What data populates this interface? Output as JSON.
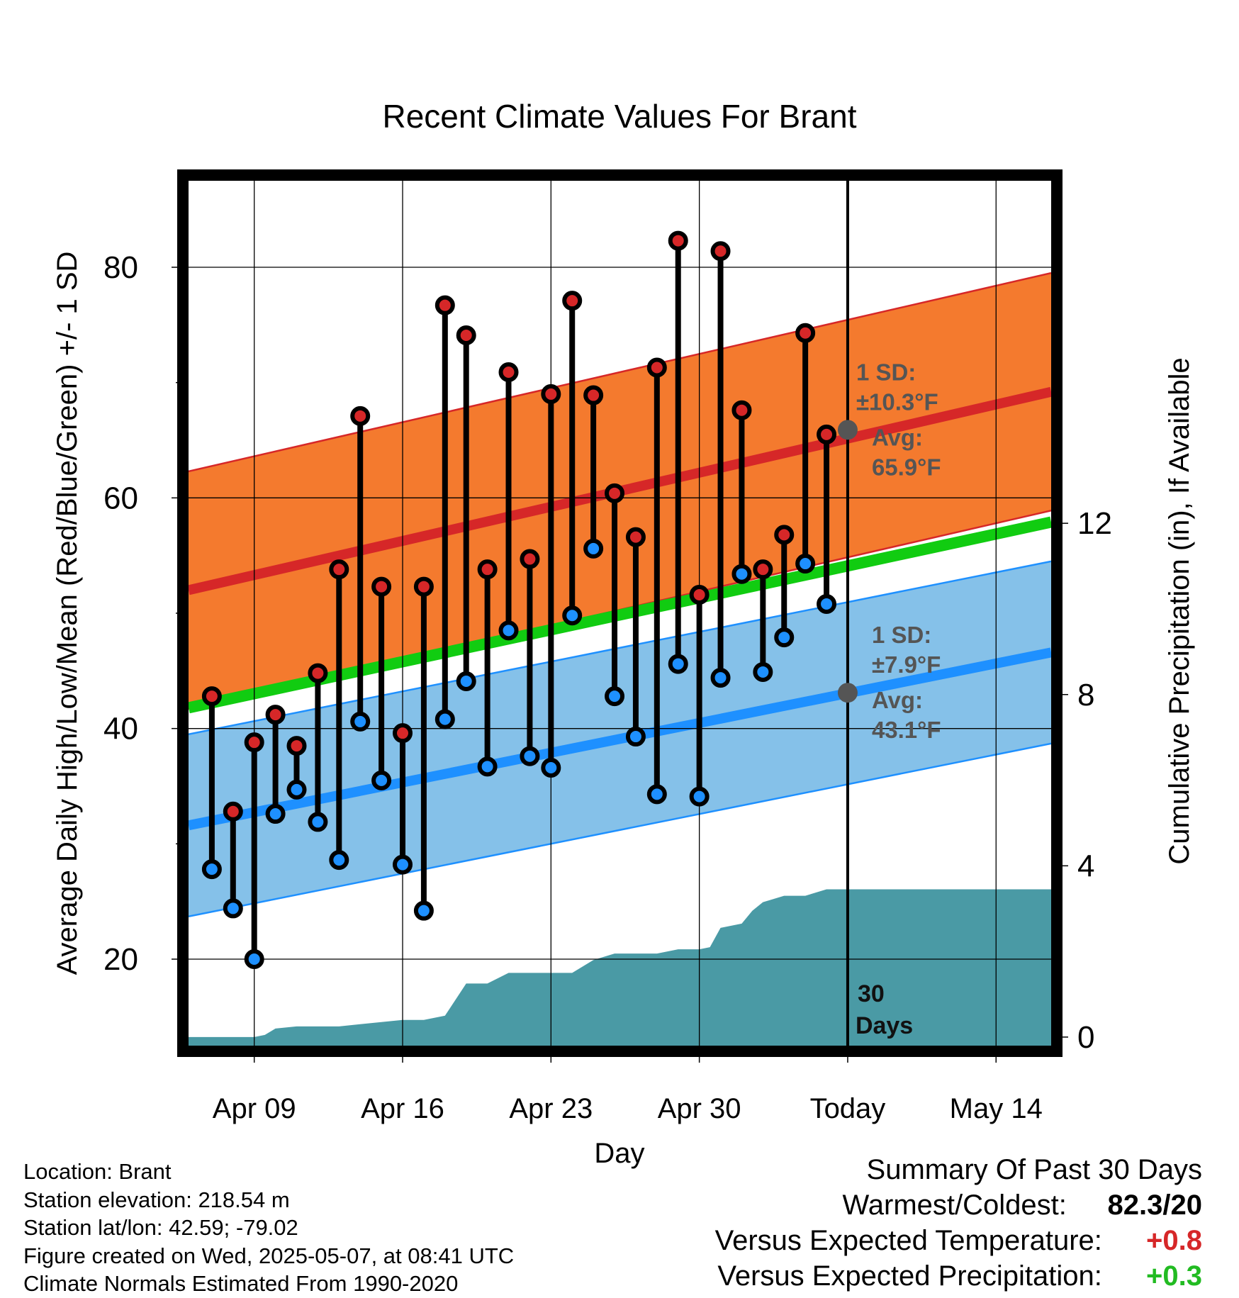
{
  "chart_data": {
    "type": "line",
    "title": "Recent Climate Values For Brant",
    "xlabel": "Day",
    "ylabel_left": "Average Daily High/Low/Mean (Red/Blue/Green) +/- 1 SD",
    "ylabel_right": "Cumulative Precipitation (in), If Available",
    "x_ticks": [
      {
        "day": 9,
        "label": "Apr 09"
      },
      {
        "day": 16,
        "label": "Apr 16"
      },
      {
        "day": 23,
        "label": "Apr 23"
      },
      {
        "day": 30,
        "label": "Apr 30"
      },
      {
        "day": 37,
        "label": "Today"
      },
      {
        "day": 44,
        "label": "May 14"
      }
    ],
    "xlim": [
      5.9,
      46.6
    ],
    "ylim": [
      12.5,
      87.5
    ],
    "y_ticks": [
      20,
      40,
      60,
      80
    ],
    "y2lim": [
      -0.2,
      20.0
    ],
    "y2_ticks": [
      0,
      4,
      8,
      12
    ],
    "grid": true,
    "normal_high": {
      "start": 52.0,
      "end": 69.2,
      "sd": 10.3
    },
    "normal_low": {
      "start": 31.6,
      "end": 46.6,
      "sd": 7.9
    },
    "normal_mean": {
      "start": 41.8,
      "end": 57.9
    },
    "today_annotations": {
      "high_sd_label": "1 SD:",
      "high_sd_value": "±10.3°F",
      "high_avg_label": "Avg:",
      "high_avg_value": "65.9°F",
      "high_avg": 65.9,
      "low_sd_label": "1 SD:",
      "low_sd_value": "±7.9°F",
      "low_avg_label": "Avg:",
      "low_avg_value": "43.1°F",
      "low_avg": 43.1,
      "window_label_1": "30",
      "window_label_2": "Days"
    },
    "series": [
      {
        "name": "High",
        "color": "#d62728",
        "x": [
          7,
          8,
          9,
          10,
          11,
          12,
          13,
          14,
          15,
          16,
          17,
          18,
          19,
          20,
          21,
          22,
          23,
          24,
          25,
          26,
          27,
          28,
          29,
          30,
          31,
          32,
          33,
          34,
          35,
          36
        ],
        "values": [
          42.8,
          32.8,
          38.8,
          41.2,
          38.5,
          44.8,
          53.8,
          67.1,
          52.3,
          39.6,
          52.3,
          76.7,
          74.1,
          53.8,
          70.9,
          54.7,
          69.0,
          77.1,
          68.9,
          60.4,
          56.6,
          71.3,
          82.3,
          51.6,
          81.4,
          67.6,
          53.8,
          56.8,
          74.3,
          65.5
        ]
      },
      {
        "name": "Low",
        "color": "#1e90ff",
        "x": [
          7,
          8,
          9,
          10,
          11,
          12,
          13,
          14,
          15,
          16,
          17,
          18,
          19,
          20,
          21,
          22,
          23,
          24,
          25,
          26,
          27,
          28,
          29,
          30,
          31,
          32,
          33,
          34,
          35,
          36
        ],
        "values": [
          27.8,
          24.4,
          20.0,
          32.6,
          34.7,
          31.9,
          28.6,
          40.6,
          35.5,
          28.2,
          24.2,
          40.8,
          44.1,
          36.7,
          48.5,
          37.6,
          36.6,
          49.8,
          55.6,
          42.8,
          39.3,
          34.3,
          45.6,
          34.1,
          44.4,
          53.4,
          44.9,
          47.9,
          54.3,
          50.8
        ]
      }
    ],
    "precipitation": {
      "color": "#4a9aa5",
      "x": [
        5.9,
        8,
        8.5,
        9,
        9.5,
        10,
        11,
        12,
        13,
        14,
        15,
        16,
        17,
        18,
        19,
        20,
        21,
        22,
        23,
        24,
        25,
        26,
        27,
        28,
        29,
        30,
        30.5,
        31,
        32,
        32.5,
        33,
        34,
        35,
        36,
        37,
        46.6
      ],
      "values": [
        0,
        0,
        0,
        0,
        0.05,
        0.2,
        0.25,
        0.25,
        0.25,
        0.3,
        0.35,
        0.4,
        0.4,
        0.5,
        1.25,
        1.25,
        1.5,
        1.5,
        1.5,
        1.5,
        1.8,
        1.95,
        1.95,
        1.95,
        2.05,
        2.05,
        2.1,
        2.55,
        2.65,
        2.95,
        3.15,
        3.3,
        3.3,
        3.45,
        3.45,
        3.45
      ]
    }
  },
  "footer": {
    "location": "Location: Brant",
    "elevation": "Station elevation: 218.54 m",
    "latlon": "Station lat/lon: 42.59; -79.02",
    "created": "Figure created on Wed, 2025-05-07, at 08:41 UTC",
    "normals": "Climate Normals Estimated From 1990-2020"
  },
  "summary": {
    "heading": "Summary Of Past 30 Days",
    "warmest_coldest_label": "Warmest/Coldest:",
    "warmest_coldest_value": "82.3/20",
    "temp_label": "Versus Expected Temperature:",
    "temp_value": "+0.8",
    "temp_color": "#d62728",
    "precip_label": "Versus Expected Precipitation:",
    "precip_value": "+0.3",
    "precip_color": "#22bb22"
  }
}
